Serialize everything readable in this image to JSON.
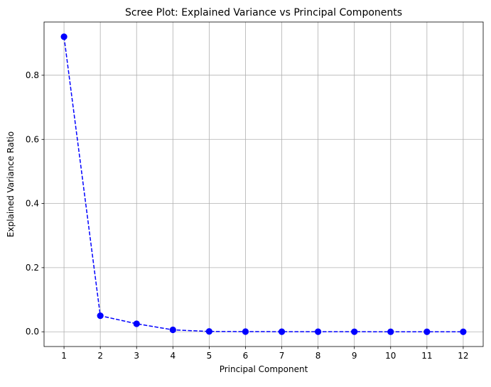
{
  "chart_data": {
    "type": "line",
    "title": "Scree Plot: Explained Variance vs Principal Components",
    "xlabel": "Principal Component",
    "ylabel": "Explained Variance Ratio",
    "x": [
      1,
      2,
      3,
      4,
      5,
      6,
      7,
      8,
      9,
      10,
      11,
      12
    ],
    "x_tick_labels": [
      "1",
      "2",
      "3",
      "4",
      "5",
      "6",
      "7",
      "8",
      "9",
      "10",
      "11",
      "12"
    ],
    "y_ticks": [
      0.0,
      0.2,
      0.4,
      0.6,
      0.8
    ],
    "y_tick_labels": [
      "0.0",
      "0.2",
      "0.4",
      "0.6",
      "0.8"
    ],
    "xlim": [
      0.45,
      12.55
    ],
    "ylim": [
      -0.046,
      0.966
    ],
    "grid": true,
    "series": [
      {
        "values": [
          0.92,
          0.05,
          0.025,
          0.006,
          0.001,
          0.0005,
          0.0003,
          0.0002,
          0.0001,
          5e-05,
          3e-05,
          1e-05
        ],
        "line_style": "dashed",
        "marker": "circle",
        "color": "#0000ff"
      }
    ],
    "colors": {
      "grid": "#b0b0b0",
      "axes": "#000000"
    }
  }
}
